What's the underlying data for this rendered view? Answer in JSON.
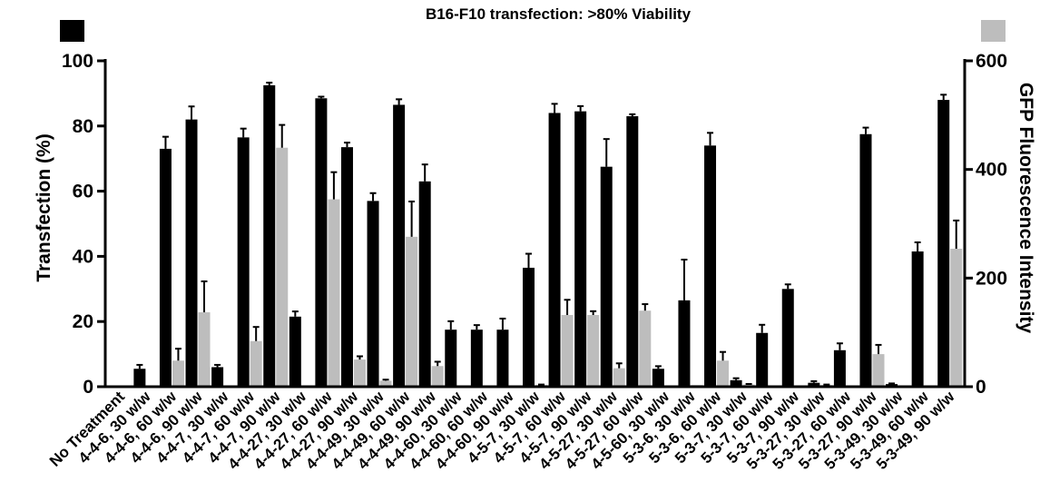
{
  "chart_data": {
    "type": "bar",
    "title": "B16-F10 transfection: >80% Viability",
    "ylabel": "Transfection (%)",
    "y2label": "GFP Fluorescence Intensity",
    "ylim": [
      0,
      100
    ],
    "y2lim": [
      0,
      600
    ],
    "yticks": [
      "0",
      "20",
      "40",
      "60",
      "80",
      "100"
    ],
    "y2ticks": [
      "0",
      "200",
      "400",
      "600"
    ],
    "categories": [
      "No Treatment",
      "4-4-6, 30 w/w",
      "4-4-6, 60 w/w",
      "4-4-6, 90 w/w",
      "4-4-7, 30 w/w",
      "4-4-7, 60 w/w",
      "4-4-7, 90 w/w",
      "4-4-27, 30 w/w",
      "4-4-27, 60 w/w",
      "4-4-27, 90 w/w",
      "4-4-49, 30 w/w",
      "4-4-49, 60 w/w",
      "4-4-49, 90 w/w",
      "4-4-60, 30 w/w",
      "4-4-60, 60 w/w",
      "4-4-60, 90 w/w",
      "4-5-7, 30 w/w",
      "4-5-7, 60 w/w",
      "4-5-7, 90 w/w",
      "4-5-27, 30 w/w",
      "4-5-27, 60 w/w",
      "4-5-60, 30 w/w",
      "5-3-6, 30 w/w",
      "5-3-6, 60 w/w",
      "5-3-7, 30 w/w",
      "5-3-7, 60 w/w",
      "5-3-7, 90 w/w",
      "5-3-27, 30 w/w",
      "5-3-27, 60 w/w",
      "5-3-27, 90 w/w",
      "5-3-49, 30 w/w",
      "5-3-49, 60 w/w",
      "5-3-49, 90 w/w"
    ],
    "series": [
      {
        "axis": "left",
        "color": "#000000",
        "values": [
          0,
          5.5,
          73,
          82,
          6,
          76.5,
          92.5,
          21.5,
          88.5,
          73.5,
          57,
          86.5,
          63,
          17.5,
          17.5,
          17.5,
          36.5,
          84,
          84.5,
          67.5,
          83,
          5.5,
          26.5,
          74,
          2,
          16.5,
          30,
          1.2,
          11.2,
          77.5,
          0.8,
          41.5,
          88
        ],
        "errors": [
          0,
          1.2,
          3.7,
          4,
          0.7,
          2.7,
          0.8,
          1.6,
          0.5,
          1.4,
          2.4,
          1.7,
          5.2,
          2.6,
          1.4,
          3.4,
          4.3,
          2.8,
          1.6,
          8.5,
          0.6,
          0.8,
          12.5,
          3.9,
          0.6,
          2.5,
          1.4,
          0.5,
          2.1,
          2,
          0.2,
          2.8,
          1.6
        ]
      },
      {
        "axis": "right",
        "color": "#bdbdbd",
        "values": [
          0,
          0,
          48,
          137,
          0,
          84,
          440,
          0,
          345,
          50,
          11,
          276,
          38,
          0,
          0,
          0,
          3,
          132,
          132,
          34,
          140,
          2,
          3,
          48,
          4,
          0,
          0,
          3,
          0,
          60,
          0,
          0,
          254
        ],
        "errors": [
          0,
          0,
          22,
          57,
          0,
          26,
          42,
          0,
          50,
          6,
          2,
          65,
          8,
          0,
          0,
          0,
          1,
          28,
          7,
          9,
          12,
          0.5,
          0.5,
          16,
          1,
          0,
          0,
          1,
          0,
          17,
          0,
          0,
          52
        ]
      }
    ],
    "legend": [
      {
        "color": "#000000",
        "placement": "top-left"
      },
      {
        "color": "#bdbdbd",
        "placement": "top-right"
      }
    ]
  }
}
